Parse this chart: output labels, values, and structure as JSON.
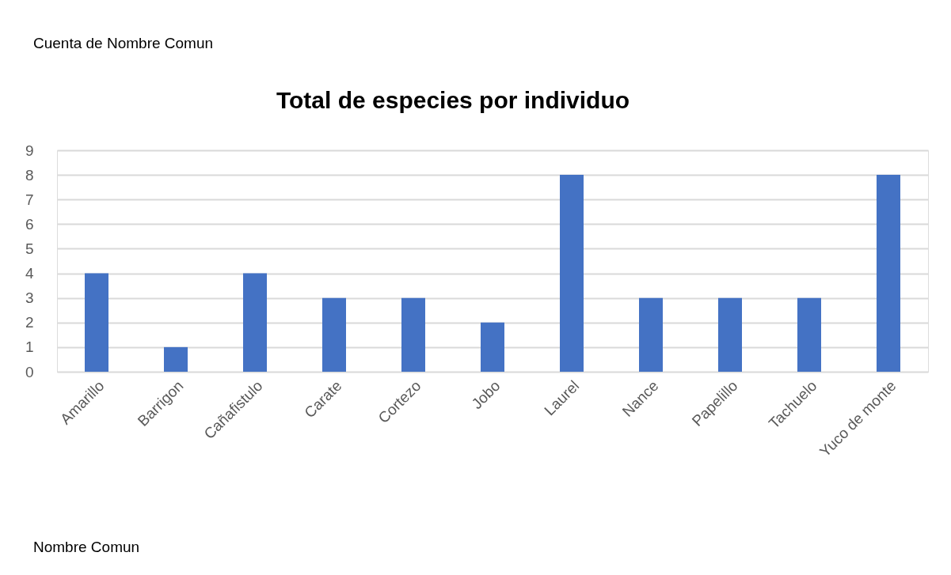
{
  "chart_data": {
    "type": "bar",
    "title": "Total de especies por individuo",
    "categories": [
      "Amarillo",
      "Barrigon",
      "Cañafistulo",
      "Carate",
      "Cortezo",
      "Jobo",
      "Laurel",
      "Nance",
      "Papelillo",
      "Tachuelo",
      "Yuco de monte"
    ],
    "values": [
      4,
      1,
      4,
      3,
      3,
      2,
      8,
      3,
      3,
      3,
      8
    ],
    "color": "#4472c4",
    "ylim": [
      0,
      9
    ],
    "yticks": [
      0,
      1,
      2,
      3,
      4,
      5,
      6,
      7,
      8,
      9
    ],
    "grid": "y",
    "legend": false,
    "annotations": [
      "Cuenta de Nombre Comun",
      "Nombre Comun"
    ]
  }
}
